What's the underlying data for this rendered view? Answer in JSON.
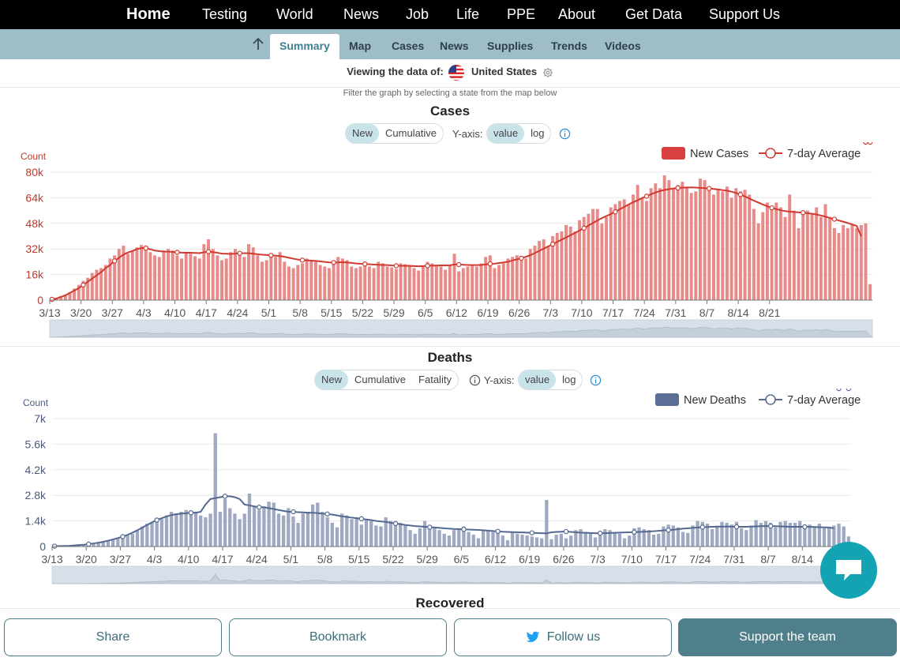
{
  "topnav": {
    "items": [
      "Home",
      "Testing",
      "World",
      "News",
      "Job",
      "Life",
      "PPE",
      "About",
      "Get Data",
      "Support Us"
    ]
  },
  "subnav": {
    "items": [
      "Summary",
      "Map",
      "Cases",
      "News",
      "Supplies",
      "Trends",
      "Videos"
    ],
    "active": "Summary",
    "up_icon": "arrow-up-icon"
  },
  "viewing": {
    "label": "Viewing the data of:",
    "region": "United States",
    "flag_icon": "us-flag-icon",
    "settings_icon": "gear-icon"
  },
  "filter_hint": "Filter the graph by selecting a state from the map below",
  "cases": {
    "title": "Cases",
    "toggles": [
      "New",
      "Cumulative"
    ],
    "active_toggle": "New",
    "yaxis_label": "Y-axis:",
    "scale_toggles": [
      "value",
      "log"
    ],
    "active_scale": "value",
    "info_icon": "info-icon",
    "legend_bar": "New Cases",
    "legend_line": "7-day Average",
    "color": "#d94040"
  },
  "deaths": {
    "title": "Deaths",
    "toggles": [
      "New",
      "Cumulative",
      "Fatality"
    ],
    "active_toggle": "New",
    "yaxis_label": "Y-axis:",
    "scale_toggles": [
      "value",
      "log"
    ],
    "active_scale": "value",
    "info_icon": "info-icon",
    "legend_bar": "New Deaths",
    "legend_line": "7-day Average",
    "color": "#5a6e96"
  },
  "recovered_title": "Recovered",
  "bottom": {
    "share": "Share",
    "bookmark": "Bookmark",
    "follow": "Follow us",
    "support": "Support the team",
    "twitter_icon": "twitter-icon",
    "chat_icon": "chat-icon"
  },
  "chart_data": [
    {
      "type": "bar",
      "title": "Cases",
      "ylabel": "Count",
      "ylim": [
        0,
        80000
      ],
      "yticks": [
        "0",
        "16k",
        "32k",
        "48k",
        "64k",
        "80k"
      ],
      "xtick_labels": [
        "3/13",
        "3/20",
        "3/27",
        "4/3",
        "4/10",
        "4/17",
        "4/24",
        "5/1",
        "5/8",
        "5/15",
        "5/22",
        "5/29",
        "6/5",
        "6/12",
        "6/19",
        "6/26",
        "7/3",
        "7/10",
        "7/17",
        "7/24",
        "7/31",
        "8/7",
        "8/14",
        "8/21"
      ],
      "x_start": "3/13",
      "series": [
        {
          "name": "New Cases",
          "values": [
            400,
            1200,
            2500,
            3500,
            5000,
            7200,
            9500,
            12000,
            14000,
            17000,
            19000,
            20000,
            22000,
            26000,
            28000,
            32000,
            34000,
            29000,
            31000,
            33000,
            34500,
            34000,
            30000,
            28000,
            27000,
            31000,
            32000,
            31000,
            28000,
            26000,
            30000,
            29000,
            27500,
            26000,
            35000,
            38000,
            32000,
            28000,
            25000,
            26000,
            30000,
            32000,
            29000,
            27000,
            35000,
            33000,
            28000,
            24000,
            25000,
            27000,
            27000,
            30000,
            24000,
            21000,
            20000,
            22000,
            23000,
            26000,
            25000,
            24000,
            22000,
            21000,
            20000,
            24000,
            27000,
            26000,
            25000,
            21000,
            20000,
            21000,
            22000,
            21000,
            20000,
            24000,
            23000,
            21000,
            20500,
            19500,
            23000,
            22500,
            22000,
            20000,
            18500,
            21000,
            24000,
            23000,
            22000,
            21000,
            19000,
            22000,
            29000,
            18000,
            20000,
            21000,
            22000,
            21000,
            23000,
            27000,
            28000,
            20000,
            22000,
            23000,
            26000,
            27000,
            28000,
            26000,
            26000,
            32000,
            34000,
            37000,
            38000,
            34000,
            40000,
            42000,
            43000,
            47000,
            46000,
            43000,
            50000,
            52000,
            54000,
            57000,
            57000,
            48000,
            52000,
            58000,
            60000,
            62000,
            63000,
            60000,
            66000,
            72000,
            64000,
            62000,
            70000,
            73000,
            70000,
            78000,
            75000,
            70000,
            72000,
            74000,
            71000,
            67000,
            68000,
            76000,
            75000,
            71000,
            66000,
            69000,
            68000,
            71000,
            64000,
            70000,
            68000,
            69000,
            66000,
            57000,
            48000,
            55000,
            61000,
            57000,
            61000,
            58000,
            52000,
            66000,
            56000,
            45000,
            54000,
            56000,
            54000,
            58000,
            52000,
            60000,
            52000,
            45000,
            42000,
            47000,
            45000,
            47000,
            45000,
            47000,
            48000,
            10000
          ]
        },
        {
          "name": "7-day Average",
          "values": [
            500,
            1000,
            2000,
            3000,
            4500,
            6000,
            7500,
            9500,
            11500,
            13500,
            15500,
            17500,
            20000,
            22000,
            24500,
            26500,
            28500,
            29800,
            30800,
            31800,
            32600,
            32500,
            31800,
            31000,
            30600,
            30400,
            30300,
            30200,
            29900,
            29700,
            29600,
            29600,
            29500,
            29400,
            29900,
            30300,
            30000,
            29600,
            29100,
            29000,
            28900,
            29100,
            29300,
            29300,
            29300,
            29000,
            28700,
            28400,
            28200,
            28000,
            27800,
            27600,
            27100,
            26500,
            25900,
            25400,
            25000,
            24900,
            24700,
            24500,
            24200,
            23900,
            23600,
            23500,
            23600,
            23700,
            23600,
            23300,
            22900,
            22700,
            22600,
            22400,
            22200,
            22100,
            22000,
            21900,
            21700,
            21500,
            21500,
            21400,
            21400,
            21300,
            21200,
            21300,
            21500,
            21600,
            21600,
            21700,
            21700,
            21800,
            22300,
            22200,
            22100,
            22000,
            21900,
            21900,
            22000,
            22300,
            22700,
            22800,
            23200,
            23600,
            24000,
            24800,
            25500,
            26200,
            27100,
            28100,
            29400,
            30800,
            32200,
            33600,
            35000,
            36400,
            37800,
            39200,
            40600,
            42000,
            43500,
            45000,
            46600,
            48200,
            49800,
            51300,
            52600,
            53800,
            55200,
            56800,
            58300,
            59800,
            61200,
            62500,
            63800,
            65000,
            66200,
            67300,
            68200,
            68900,
            69400,
            69800,
            70100,
            70300,
            70400,
            70500,
            70400,
            70200,
            70000,
            69800,
            69500,
            69200,
            68800,
            68400,
            67800,
            67000,
            66000,
            64800,
            63500,
            62200,
            61000,
            59800,
            58700,
            57700,
            56900,
            56200,
            55700,
            55300,
            55100,
            54900,
            54700,
            54400,
            54000,
            53500,
            52900,
            52200,
            51400,
            50600,
            49800,
            49000,
            48200,
            47300,
            46400,
            40000
          ]
        }
      ],
      "legend": "top-right"
    },
    {
      "type": "bar",
      "title": "Deaths",
      "ylabel": "Count",
      "ylim": [
        0,
        7000
      ],
      "yticks": [
        "0",
        "1.4k",
        "2.8k",
        "4.2k",
        "5.6k",
        "7k"
      ],
      "xtick_labels": [
        "3/13",
        "3/20",
        "3/27",
        "4/3",
        "4/10",
        "4/17",
        "4/24",
        "5/1",
        "5/8",
        "5/15",
        "5/22",
        "5/29",
        "6/5",
        "6/12",
        "6/19",
        "6/26",
        "7/3",
        "7/10",
        "7/17",
        "7/24",
        "7/31",
        "8/7",
        "8/14"
      ],
      "x_start": "3/13",
      "series": [
        {
          "name": "New Deaths",
          "values": [
            10,
            20,
            30,
            40,
            50,
            60,
            80,
            100,
            130,
            180,
            220,
            300,
            380,
            420,
            500,
            600,
            700,
            900,
            1100,
            1250,
            1300,
            1350,
            1500,
            1700,
            1900,
            1800,
            1900,
            2000,
            1850,
            1900,
            1700,
            1600,
            1800,
            6200,
            1900,
            2600,
            2100,
            1800,
            1500,
            1800,
            2900,
            2200,
            2000,
            2200,
            2450,
            2400,
            1800,
            1700,
            2100,
            1650,
            1300,
            1800,
            1900,
            2300,
            2400,
            1900,
            1600,
            1300,
            1050,
            1800,
            1700,
            1500,
            1600,
            1200,
            1450,
            1400,
            1150,
            1100,
            1600,
            1400,
            1200,
            1300,
            1200,
            900,
            700,
            1000,
            1400,
            1100,
            1050,
            900,
            700,
            600,
            900,
            1000,
            1100,
            800,
            650,
            450,
            900,
            850,
            800,
            750,
            600,
            350,
            750,
            700,
            650,
            600,
            550,
            500,
            450,
            2550,
            400,
            650,
            700,
            450,
            600,
            900,
            950,
            800,
            750,
            500,
            600,
            950,
            900,
            800,
            700,
            450,
            600,
            1000,
            1050,
            950,
            900,
            650,
            700,
            1100,
            1200,
            1150,
            1050,
            800,
            750,
            1150,
            1400,
            1350,
            1250,
            950,
            1100,
            1350,
            1300,
            1200,
            1350,
            1000,
            900,
            1150,
            1450,
            1300,
            1400,
            1300,
            1050,
            1350,
            1400,
            1300,
            1300,
            1400,
            1050,
            1200,
            1100,
            1250,
            1000,
            1050,
            1150,
            1250,
            1100,
            550
          ]
        },
        {
          "name": "7-day Average",
          "values": [
            20,
            25,
            30,
            40,
            60,
            80,
            100,
            130,
            170,
            210,
            260,
            320,
            390,
            460,
            540,
            640,
            760,
            890,
            1030,
            1180,
            1320,
            1450,
            1550,
            1650,
            1720,
            1770,
            1800,
            1820,
            1850,
            1850,
            1900,
            2300,
            2600,
            2650,
            2700,
            2750,
            2750,
            2700,
            2600,
            2300,
            2250,
            2200,
            2150,
            2150,
            2100,
            2050,
            2000,
            1950,
            1900,
            1900,
            1880,
            1870,
            1850,
            1850,
            1830,
            1800,
            1780,
            1750,
            1700,
            1650,
            1620,
            1580,
            1550,
            1520,
            1480,
            1450,
            1400,
            1370,
            1350,
            1300,
            1260,
            1220,
            1180,
            1150,
            1120,
            1100,
            1080,
            1060,
            1040,
            1020,
            1000,
            980,
            960,
            950,
            940,
            930,
            920,
            910,
            890,
            870,
            850,
            830,
            810,
            800,
            790,
            780,
            770,
            760,
            750,
            740,
            730,
            720,
            780,
            800,
            810,
            820,
            800,
            780,
            760,
            750,
            740,
            730,
            730,
            730,
            740,
            750,
            760,
            770,
            780,
            790,
            800,
            810,
            820,
            840,
            860,
            880,
            900,
            920,
            950,
            980,
            1000,
            1020,
            1040,
            1060,
            1070,
            1080,
            1090,
            1090,
            1090,
            1090,
            1080,
            1080,
            1080,
            1090,
            1100,
            1110,
            1120,
            1120,
            1110,
            1100,
            1090,
            1080,
            1080,
            1080,
            1080,
            1080,
            1070,
            1060,
            1050,
            1040,
            1000
          ]
        }
      ],
      "legend": "top-right"
    }
  ]
}
